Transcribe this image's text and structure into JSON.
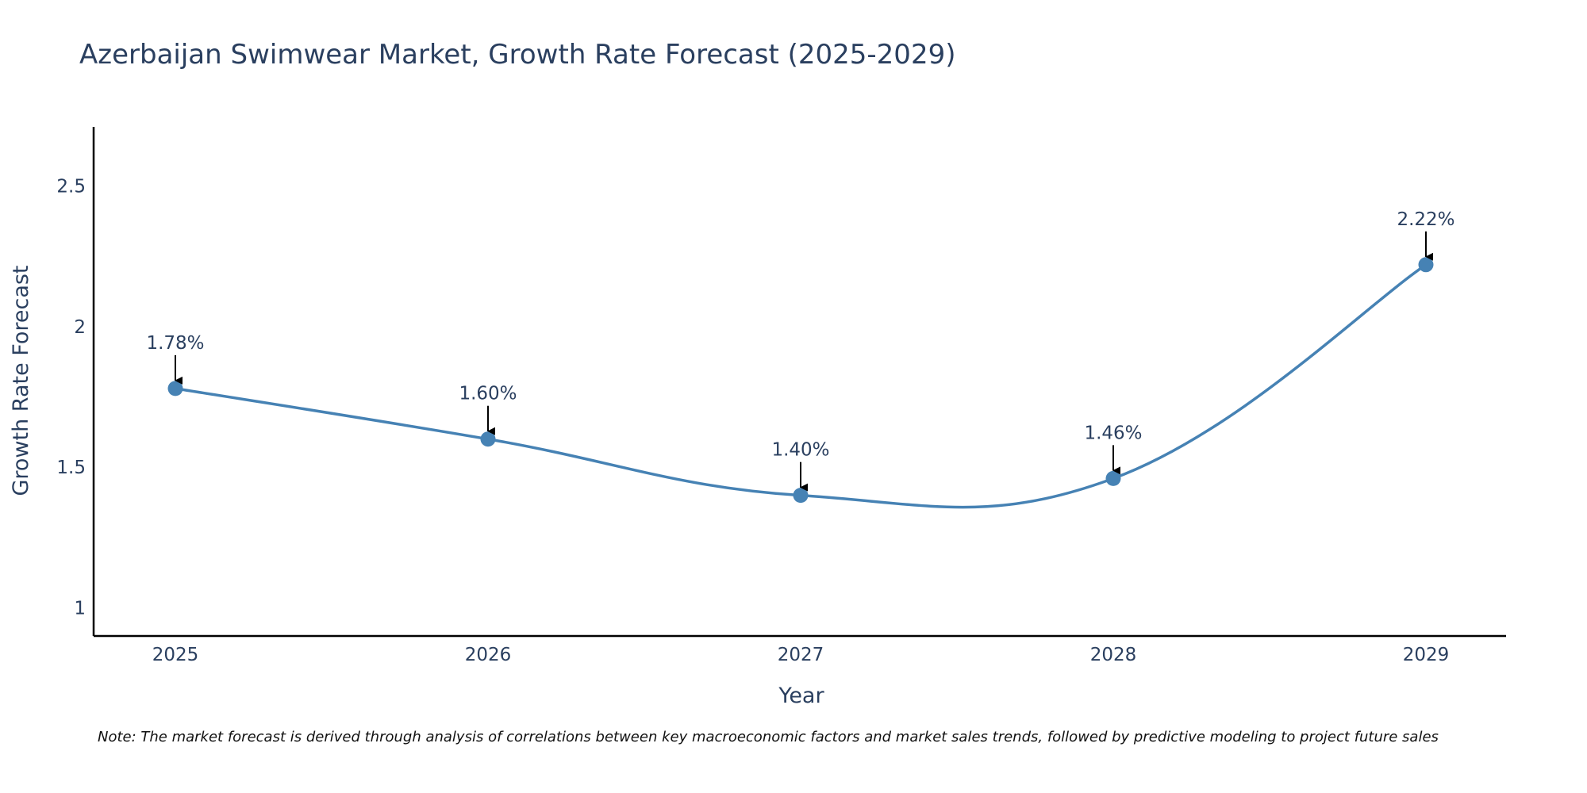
{
  "colors": {
    "line": "#4682b4",
    "marker": "#4682b4",
    "text": "#2a3f5f",
    "axis": "#000000",
    "background": "#ffffff"
  },
  "chart_data": {
    "type": "line",
    "title": "Azerbaijan Swimwear Market, Growth Rate Forecast (2025-2029)",
    "xlabel": "Year",
    "ylabel": "Growth Rate Forecast",
    "categories": [
      "2025",
      "2026",
      "2027",
      "2028",
      "2029"
    ],
    "values": [
      1.78,
      1.6,
      1.4,
      1.46,
      2.22
    ],
    "data_labels": [
      "1.78%",
      "1.60%",
      "1.40%",
      "1.46%",
      "2.22%"
    ],
    "y_ticks": [
      1,
      1.5,
      2,
      2.5
    ],
    "y_tick_labels": [
      "1",
      "1.5",
      "2",
      "2.5"
    ],
    "ylim": [
      0.9,
      2.71
    ],
    "grid": false,
    "smooth": true
  },
  "note": "Note: The market forecast is derived through analysis of correlations between key macroeconomic factors and market sales trends, followed by predictive modeling to project future sales"
}
